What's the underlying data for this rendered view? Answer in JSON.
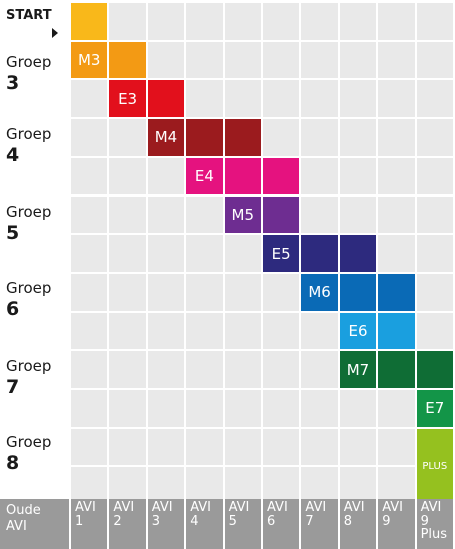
{
  "start_label": "START",
  "row_labels": [
    {
      "l1": "Groep",
      "l2": "3"
    },
    {
      "l1": "Groep",
      "l2": "4"
    },
    {
      "l1": "Groep",
      "l2": "5"
    },
    {
      "l1": "Groep",
      "l2": "6"
    },
    {
      "l1": "Groep",
      "l2": "7"
    },
    {
      "l1": "Groep",
      "l2": "8"
    }
  ],
  "footer": {
    "title_l1": "Oude",
    "title_l2": "AVI",
    "columns": [
      {
        "l1": "AVI",
        "l2": "1"
      },
      {
        "l1": "AVI",
        "l2": "2"
      },
      {
        "l1": "AVI",
        "l2": "3"
      },
      {
        "l1": "AVI",
        "l2": "4"
      },
      {
        "l1": "AVI",
        "l2": "5"
      },
      {
        "l1": "AVI",
        "l2": "6"
      },
      {
        "l1": "AVI",
        "l2": "7"
      },
      {
        "l1": "AVI",
        "l2": "8"
      },
      {
        "l1": "AVI",
        "l2": "9"
      },
      {
        "l1": "AVI",
        "l2": "9",
        "l3": "Plus"
      }
    ]
  },
  "blocks": [
    {
      "label": "",
      "col": 0,
      "row": 0,
      "color": "#f9b81a"
    },
    {
      "label": "M3",
      "col": 0,
      "row": 1,
      "color": "#f39a14"
    },
    {
      "label": "",
      "col": 1,
      "row": 1,
      "color": "#f39a14"
    },
    {
      "label": "E3",
      "col": 1,
      "row": 2,
      "color": "#e2101c"
    },
    {
      "label": "",
      "col": 2,
      "row": 2,
      "color": "#e2101c"
    },
    {
      "label": "M4",
      "col": 2,
      "row": 3,
      "color": "#9b1b1e"
    },
    {
      "label": "",
      "col": 3,
      "row": 3,
      "color": "#9b1b1e"
    },
    {
      "label": "",
      "col": 4,
      "row": 3,
      "color": "#9b1b1e"
    },
    {
      "label": "E4",
      "col": 3,
      "row": 4,
      "color": "#e5127f"
    },
    {
      "label": "",
      "col": 4,
      "row": 4,
      "color": "#e5127f"
    },
    {
      "label": "",
      "col": 5,
      "row": 4,
      "color": "#e5127f"
    },
    {
      "label": "M5",
      "col": 4,
      "row": 5,
      "color": "#6e2d91"
    },
    {
      "label": "",
      "col": 5,
      "row": 5,
      "color": "#6e2d91"
    },
    {
      "label": "E5",
      "col": 5,
      "row": 6,
      "color": "#2d2a7e"
    },
    {
      "label": "",
      "col": 6,
      "row": 6,
      "color": "#2d2a7e"
    },
    {
      "label": "",
      "col": 7,
      "row": 6,
      "color": "#2d2a7e"
    },
    {
      "label": "M6",
      "col": 6,
      "row": 7,
      "color": "#0a6ab6"
    },
    {
      "label": "",
      "col": 7,
      "row": 7,
      "color": "#0a6ab6"
    },
    {
      "label": "",
      "col": 8,
      "row": 7,
      "color": "#0a6ab6"
    },
    {
      "label": "E6",
      "col": 7,
      "row": 8,
      "color": "#1a9fdf"
    },
    {
      "label": "",
      "col": 8,
      "row": 8,
      "color": "#1a9fdf"
    },
    {
      "label": "M7",
      "col": 7,
      "row": 9,
      "color": "#0f6d35"
    },
    {
      "label": "",
      "col": 8,
      "row": 9,
      "color": "#0f6d35"
    },
    {
      "label": "",
      "col": 9,
      "row": 9,
      "color": "#0f6d35"
    },
    {
      "label": "E7",
      "col": 9,
      "row": 10,
      "color": "#139548"
    },
    {
      "label": "PLUS",
      "col": 9,
      "row": 11,
      "color": "#95c11f",
      "tall": true,
      "small": true
    }
  ]
}
